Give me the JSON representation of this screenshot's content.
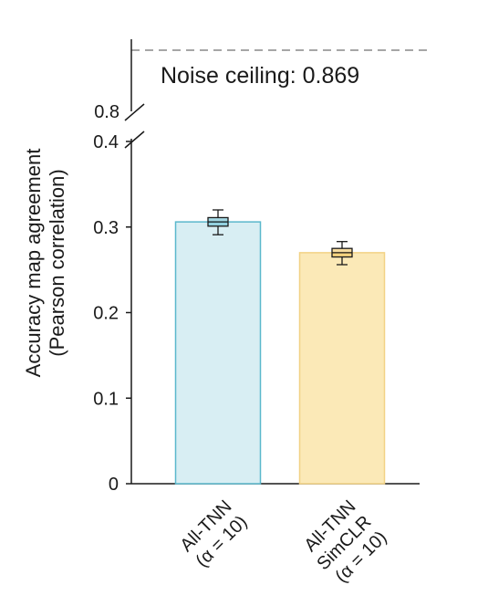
{
  "chart_data": {
    "type": "bar",
    "categories": [
      "All-TNN (α = 10)",
      "All-TNN SimCLR (α = 10)"
    ],
    "category_label_lines": [
      [
        "All-TNN",
        "(α = 10)"
      ],
      [
        "All-TNN",
        "SimCLR",
        "(α = 10)"
      ]
    ],
    "values": [
      0.306,
      0.27
    ],
    "box": [
      {
        "whisker_low": 0.291,
        "q1": 0.301,
        "median": 0.306,
        "q3": 0.311,
        "whisker_high": 0.32
      },
      {
        "whisker_low": 0.256,
        "q1": 0.265,
        "median": 0.27,
        "q3": 0.275,
        "whisker_high": 0.283
      }
    ],
    "colors": {
      "bar_fills": [
        "#d8eef3",
        "#fbe9b7"
      ],
      "bar_strokes": [
        "#5ab8cc",
        "#f2d285"
      ],
      "box_fills": [
        "#5ab8cc",
        "#f0c050"
      ],
      "axis": "#1a1a1a",
      "ceiling_line": "#a6a6a6"
    },
    "ylabel_lines": [
      "Accuracy map agreement",
      "(Pearson correlation)"
    ],
    "y_ticks": [
      0,
      0.1,
      0.2,
      0.3,
      0.4
    ],
    "y_tick_labels": [
      "0",
      "0.1",
      "0.2",
      "0.3",
      "0.4"
    ],
    "ylim": [
      0,
      0.4
    ],
    "axis_break": {
      "from": 0.4,
      "to": 0.8,
      "upper_tick_label": "0.8"
    },
    "reference_line": {
      "value": 0.869,
      "label": "Noise ceiling: 0.869",
      "style": "dashed"
    },
    "grid": false,
    "legend": "none"
  }
}
